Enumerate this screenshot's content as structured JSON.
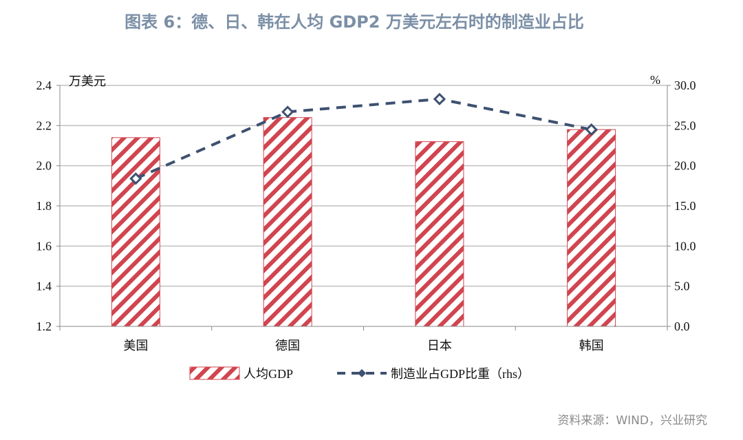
{
  "title": "图表 6：德、日、韩在人均 GDP2 万美元左右时的制造业占比",
  "source": "资料来源：WIND，兴业研究",
  "chart_data": {
    "type": "bar+line",
    "categories": [
      "美国",
      "德国",
      "日本",
      "韩国"
    ],
    "series": [
      {
        "name": "人均GDP",
        "type": "bar",
        "axis": "left",
        "values": [
          2.14,
          2.24,
          2.12,
          2.18
        ],
        "color": "#c8404a"
      },
      {
        "name": "制造业占GDP比重（rhs）",
        "type": "line",
        "axis": "right",
        "values": [
          18.4,
          26.7,
          28.3,
          24.5
        ],
        "color": "#3d5170"
      }
    ],
    "y_left": {
      "label": "万美元",
      "ylim": [
        1.2,
        2.4
      ],
      "ticks": [
        "1.2",
        "1.4",
        "1.6",
        "1.8",
        "2.0",
        "2.2",
        "2.4"
      ]
    },
    "y_right": {
      "label": "%",
      "ylim": [
        0,
        30
      ],
      "ticks": [
        "0.0",
        "5.0",
        "10.0",
        "15.0",
        "20.0",
        "25.0",
        "30.0"
      ]
    },
    "grid": true,
    "legend": "bottom"
  }
}
